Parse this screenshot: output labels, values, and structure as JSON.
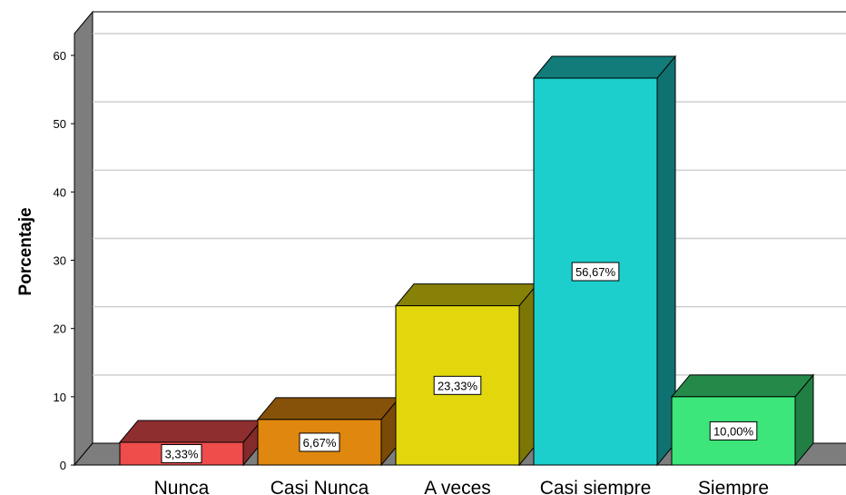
{
  "chart_data": {
    "type": "bar",
    "style": "3d",
    "categories": [
      "Nunca",
      "Casi Nunca",
      "A veces",
      "Casi siempre",
      "Siempre"
    ],
    "values": [
      3.33,
      6.67,
      23.33,
      56.67,
      10.0
    ],
    "data_labels": [
      "3,33%",
      "6,67%",
      "23,33%",
      "56,67%",
      "10,00%"
    ],
    "colors": [
      "#ef4c4c",
      "#e0870f",
      "#e1d70c",
      "#1ccfcc",
      "#3de67a"
    ],
    "ylabel": "Porcentaje",
    "ylim": [
      0,
      60
    ],
    "yticks": [
      "0",
      "10",
      "20",
      "30",
      "40",
      "50",
      "60"
    ],
    "grid": true
  }
}
